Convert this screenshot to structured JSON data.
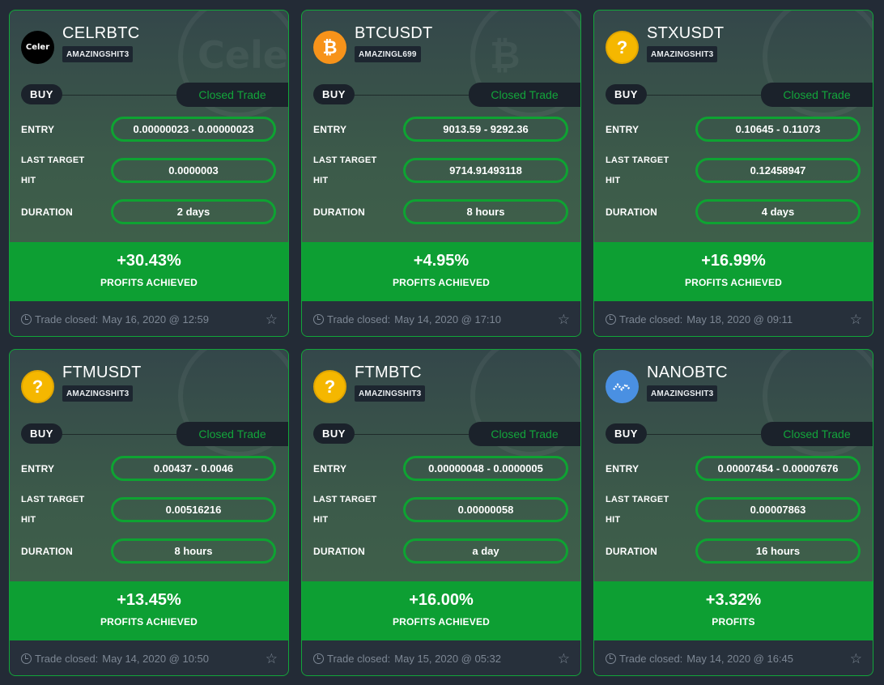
{
  "trade_status_label": "Closed Trade",
  "side_label": "BUY",
  "labels": {
    "entry": "ENTRY",
    "last_target_hit_1": "LAST TARGET",
    "last_target_hit_2": "HIT",
    "duration": "DURATION",
    "trade_closed": "Trade closed:"
  },
  "colors": {
    "accent_green": "#0d9f33",
    "card_border": "#12a63a",
    "background": "#232b36"
  },
  "cards": [
    {
      "pair": "CELRBTC",
      "user": "AMAZINGSHIT3",
      "coin_icon": "celer-coin-icon",
      "coin_text": "Celer",
      "watermark": "Celer",
      "entry": "0.00000023 - 0.00000023",
      "last_target": "0.0000003",
      "duration": "2 days",
      "profit": "+30.43%",
      "profit_label": "PROFITS ACHIEVED",
      "closed_at": "May 16, 2020 @ 12:59"
    },
    {
      "pair": "BTCUSDT",
      "user": "AMAZINGL699",
      "coin_icon": "bitcoin-coin-icon",
      "coin_text": "₿",
      "watermark": "₿",
      "entry": "9013.59 - 9292.36",
      "last_target": "9714.91493118",
      "duration": "8 hours",
      "profit": "+4.95%",
      "profit_label": "PROFITS ACHIEVED",
      "closed_at": "May 14, 2020 @ 17:10"
    },
    {
      "pair": "STXUSDT",
      "user": "AMAZINGSHIT3",
      "coin_icon": "question-coin-icon",
      "coin_text": "?",
      "watermark": "",
      "entry": "0.10645 - 0.11073",
      "last_target": "0.12458947",
      "duration": "4 days",
      "profit": "+16.99%",
      "profit_label": "PROFITS ACHIEVED",
      "closed_at": "May 18, 2020 @ 09:11"
    },
    {
      "pair": "FTMUSDT",
      "user": "AMAZINGSHIT3",
      "coin_icon": "question-coin-icon",
      "coin_text": "?",
      "watermark": "",
      "entry": "0.00437 - 0.0046",
      "last_target": "0.00516216",
      "duration": "8 hours",
      "profit": "+13.45%",
      "profit_label": "PROFITS ACHIEVED",
      "closed_at": "May 14, 2020 @ 10:50"
    },
    {
      "pair": "FTMBTC",
      "user": "AMAZINGSHIT3",
      "coin_icon": "question-coin-icon",
      "coin_text": "?",
      "watermark": "",
      "entry": "0.00000048 - 0.0000005",
      "last_target": "0.00000058",
      "duration": "a day",
      "profit": "+16.00%",
      "profit_label": "PROFITS ACHIEVED",
      "closed_at": "May 15, 2020 @ 05:32"
    },
    {
      "pair": "NANOBTC",
      "user": "AMAZINGSHIT3",
      "coin_icon": "nano-coin-icon",
      "coin_text": "",
      "watermark": "",
      "entry": "0.00007454 - 0.00007676",
      "last_target": "0.00007863",
      "duration": "16 hours",
      "profit": "+3.32%",
      "profit_label": "PROFITS",
      "closed_at": "May 14, 2020 @ 16:45"
    }
  ]
}
